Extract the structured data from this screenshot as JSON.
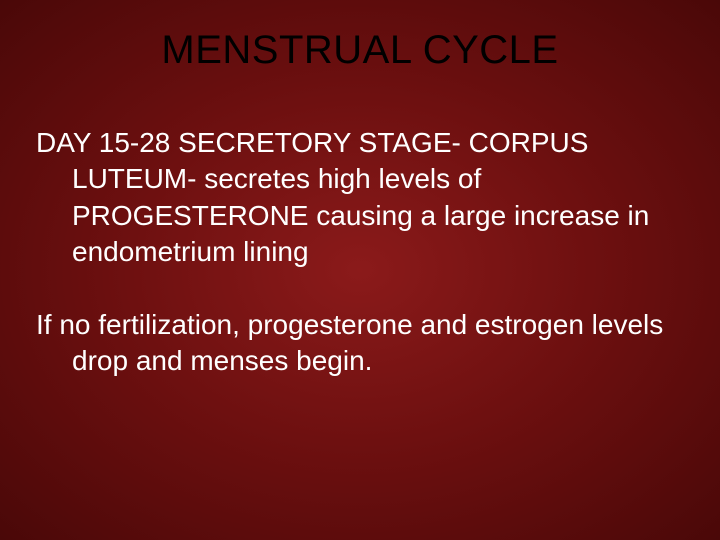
{
  "slide": {
    "title": "MENSTRUAL CYCLE",
    "paragraph1": "DAY 15-28  SECRETORY STAGE-   CORPUS LUTEUM- secretes high levels of PROGESTERONE causing  a large increase in endometrium lining",
    "paragraph2": "If no fertilization, progesterone and estrogen levels drop and menses begin.",
    "colors": {
      "background_center": "#8b1a1a",
      "background_mid": "#6b0f0f",
      "background_edge": "#4a0808",
      "title_color": "#000000",
      "body_color": "#ffffff"
    },
    "typography": {
      "title_fontsize": 40,
      "body_fontsize": 28,
      "font_family": "Tahoma"
    }
  }
}
